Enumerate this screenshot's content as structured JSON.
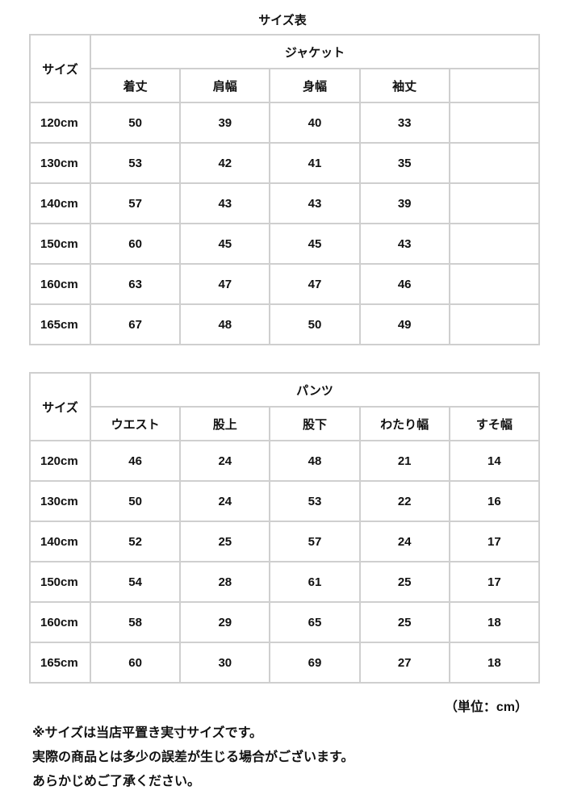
{
  "title": "サイズ表",
  "size_label": "サイズ",
  "jacket": {
    "group": "ジャケット",
    "columns": [
      "着丈",
      "肩幅",
      "身幅",
      "袖丈",
      ""
    ],
    "rows": [
      [
        "120cm",
        "50",
        "39",
        "40",
        "33",
        ""
      ],
      [
        "130cm",
        "53",
        "42",
        "41",
        "35",
        ""
      ],
      [
        "140cm",
        "57",
        "43",
        "43",
        "39",
        ""
      ],
      [
        "150cm",
        "60",
        "45",
        "45",
        "43",
        ""
      ],
      [
        "160cm",
        "63",
        "47",
        "47",
        "46",
        ""
      ],
      [
        "165cm",
        "67",
        "48",
        "50",
        "49",
        ""
      ]
    ]
  },
  "pants": {
    "group": "パンツ",
    "columns": [
      "ウエスト",
      "股上",
      "股下",
      "わたり幅",
      "すそ幅"
    ],
    "rows": [
      [
        "120cm",
        "46",
        "24",
        "48",
        "21",
        "14"
      ],
      [
        "130cm",
        "50",
        "24",
        "53",
        "22",
        "16"
      ],
      [
        "140cm",
        "52",
        "25",
        "57",
        "24",
        "17"
      ],
      [
        "150cm",
        "54",
        "28",
        "61",
        "25",
        "17"
      ],
      [
        "160cm",
        "58",
        "29",
        "65",
        "25",
        "18"
      ],
      [
        "165cm",
        "60",
        "30",
        "69",
        "27",
        "18"
      ]
    ]
  },
  "unit": "（単位：cm）",
  "notes": [
    "※サイズは当店平置き実寸サイズです。",
    "実際の商品とは多少の誤差が生じる場合がございます。",
    "あらかじめご了承ください。"
  ]
}
